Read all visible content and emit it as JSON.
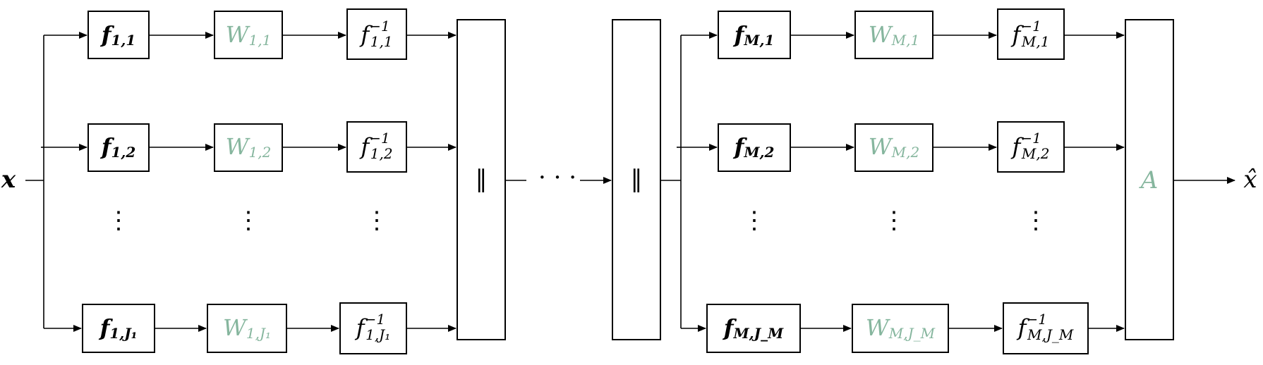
{
  "colors": {
    "weight": "#86b69e",
    "line": "#000000",
    "background": "#ffffff"
  },
  "input": {
    "label": "x"
  },
  "output": {
    "label": "x̂"
  },
  "concat_symbol": "‖",
  "middle_dots": "· · ·",
  "vdots": "⋮",
  "stages": [
    {
      "rows": [
        {
          "f": "f",
          "f_sub": "1,1",
          "w": "W",
          "w_sub": "1,1",
          "inv": "f",
          "inv_sup": "−1",
          "inv_sub": "1,1"
        },
        {
          "f": "f",
          "f_sub": "1,2",
          "w": "W",
          "w_sub": "1,2",
          "inv": "f",
          "inv_sup": "−1",
          "inv_sub": "1,2"
        },
        {
          "f": "f",
          "f_sub": "1,J₁",
          "w": "W",
          "w_sub": "1,J₁",
          "inv": "f",
          "inv_sup": "−1",
          "inv_sub": "1,J₁"
        }
      ]
    },
    {
      "rows": [
        {
          "f": "f",
          "f_sub": "M,1",
          "w": "W",
          "w_sub": "M,1",
          "inv": "f",
          "inv_sup": "−1",
          "inv_sub": "M,1"
        },
        {
          "f": "f",
          "f_sub": "M,2",
          "w": "W",
          "w_sub": "M,2",
          "inv": "f",
          "inv_sup": "−1",
          "inv_sub": "M,2"
        },
        {
          "f": "f",
          "f_sub": "M,J_M",
          "w": "W",
          "w_sub": "M,J_M",
          "inv": "f",
          "inv_sup": "−1",
          "inv_sub": "M,J_M"
        }
      ]
    }
  ],
  "aggregator": {
    "label": "A"
  }
}
